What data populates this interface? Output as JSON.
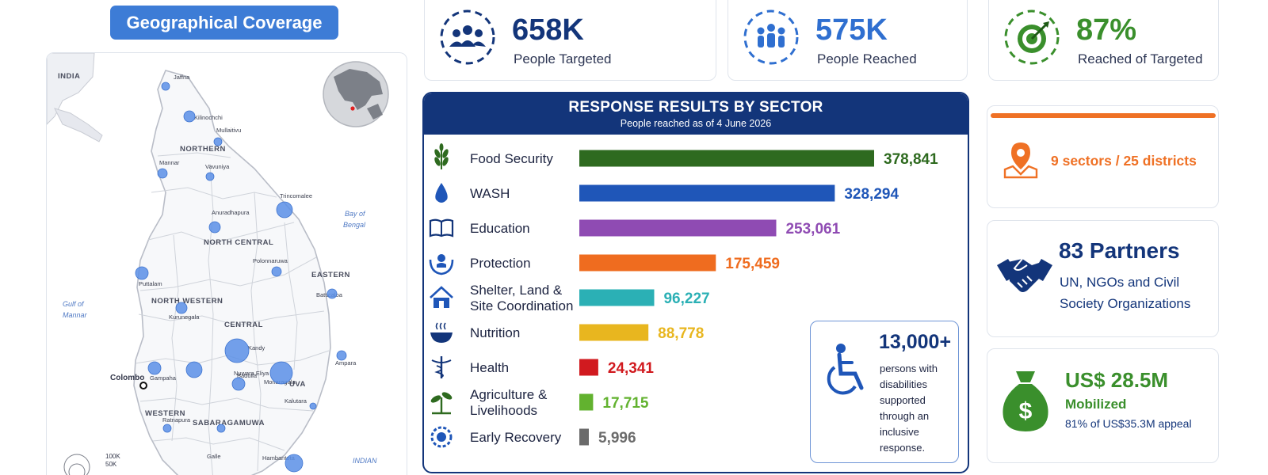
{
  "geo": {
    "title": "Geographical Coverage",
    "country_label": "INDIA",
    "water": {
      "bay": [
        "Bay of",
        "Bengal"
      ],
      "gulf": [
        "Gulf of",
        "Mannar"
      ],
      "ocean": "INDIAN"
    },
    "regions": [
      "NORTHERN",
      "NORTH CENTRAL",
      "EASTERN",
      "NORTH WESTERN",
      "CENTRAL",
      "UVA",
      "WESTERN",
      "SABARAGAMUWA"
    ],
    "districts": [
      "Jaffna",
      "Kilinochchi",
      "Mullaitivu",
      "Mannar",
      "Vavuniya",
      "Trincomalee",
      "Anuradhapura",
      "Polonnaruwa",
      "Puttalam",
      "Batticaloa",
      "Kurunegala",
      "Kandy",
      "Ampara",
      "Gampaha",
      "Nuwara Eliya",
      "Badulla",
      "Monaragala",
      "Kalutara",
      "Ratnapura",
      "Galle",
      "Hambantota"
    ],
    "capital": "Colombo",
    "legend": [
      "100K",
      "50K"
    ]
  },
  "kpis": [
    {
      "value": "658K",
      "label": "People Targeted",
      "color": "#13357a",
      "icon": "people-group-icon"
    },
    {
      "value": "575K",
      "label": "People Reached",
      "color": "#2f6fd0",
      "icon": "people-reached-icon"
    },
    {
      "value": "87%",
      "label": "Reached of Targeted",
      "color": "#3a8f2c",
      "icon": "target-icon"
    }
  ],
  "sector_panel": {
    "title": "RESPONSE RESULTS BY SECTOR",
    "subtitle": "People reached as of 4 June 2026"
  },
  "chart_data": {
    "type": "bar",
    "orientation": "horizontal",
    "title": "RESPONSE RESULTS BY SECTOR",
    "subtitle": "People reached as of 4 June 2026",
    "categories": [
      [
        "Food Security"
      ],
      [
        "WASH"
      ],
      [
        "Education"
      ],
      [
        "Protection"
      ],
      [
        "Shelter, Land &",
        "Site Coordination"
      ],
      [
        "Nutrition"
      ],
      [
        "Health"
      ],
      [
        "Agriculture &",
        "Livelihoods"
      ],
      [
        "Early Recovery"
      ]
    ],
    "values": [
      378841,
      328294,
      253061,
      175459,
      96227,
      88778,
      24341,
      17715,
      5996
    ],
    "value_labels": [
      "378,841",
      "328,294",
      "253,061",
      "175,459",
      "96,227",
      "88,778",
      "24,341",
      "17,715",
      "5,996"
    ],
    "colors": [
      "#2e6a1f",
      "#1f56b8",
      "#8f4bb3",
      "#ef6c1f",
      "#2bb0b5",
      "#e8b61f",
      "#d11a1f",
      "#62b22f",
      "#6b6b6b"
    ],
    "icons": [
      "wheat-icon",
      "water-drop-icon",
      "book-icon",
      "protection-hands-icon",
      "shelter-house-icon",
      "nutrition-bowl-icon",
      "health-caduceus-icon",
      "plant-sprout-icon",
      "recovery-gear-icon"
    ],
    "xlim": [
      0,
      378841
    ],
    "grid": false,
    "legend": "none"
  },
  "disability": {
    "count": "13,000+",
    "text": [
      "persons with",
      "disabilities",
      "supported",
      "through an",
      "inclusive",
      "response."
    ]
  },
  "sectors_districts": {
    "text": "9 sectors / 25 districts",
    "color": "#ef7125"
  },
  "partners": {
    "title": "83 Partners",
    "desc": [
      "UN, NGOs and Civil",
      "Society Organizations"
    ]
  },
  "funding": {
    "amount": "US$ 28.5M",
    "label": "Mobilized",
    "appeal": "81% of US$35.3M appeal"
  }
}
